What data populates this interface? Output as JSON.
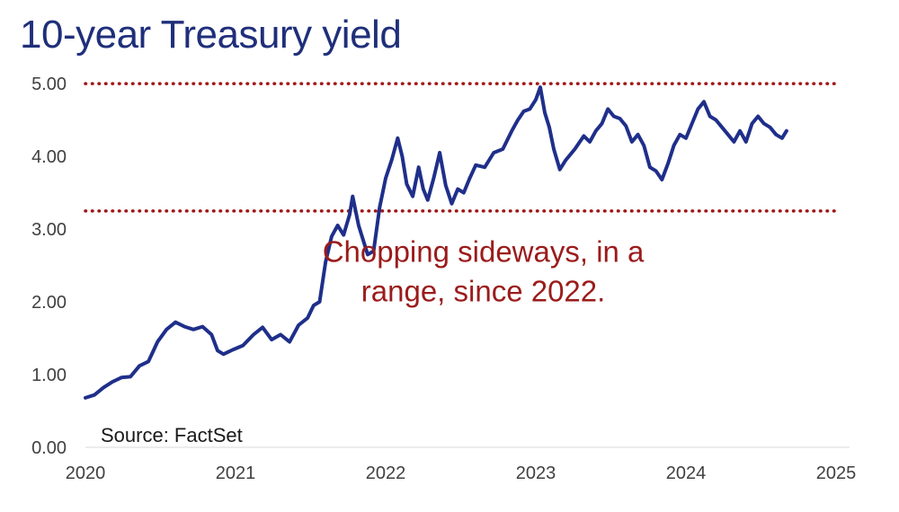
{
  "chart_data": {
    "type": "line",
    "title": "10-year Treasury yield",
    "xlabel": "",
    "ylabel": "",
    "x_ticks": [
      "2020",
      "2021",
      "2022",
      "2023",
      "2024",
      "2025"
    ],
    "y_ticks": [
      "0.00",
      "1.00",
      "2.00",
      "3.00",
      "4.00",
      "5.00"
    ],
    "xlim": [
      2020,
      2025
    ],
    "ylim": [
      0,
      5.1
    ],
    "grid": false,
    "series": [
      {
        "name": "",
        "color": "#1f2f8a",
        "points": [
          [
            2020.0,
            0.68
          ],
          [
            2020.06,
            0.72
          ],
          [
            2020.12,
            0.82
          ],
          [
            2020.18,
            0.9
          ],
          [
            2020.24,
            0.96
          ],
          [
            2020.3,
            0.97
          ],
          [
            2020.36,
            1.12
          ],
          [
            2020.42,
            1.18
          ],
          [
            2020.48,
            1.45
          ],
          [
            2020.54,
            1.62
          ],
          [
            2020.6,
            1.72
          ],
          [
            2020.66,
            1.66
          ],
          [
            2020.72,
            1.62
          ],
          [
            2020.78,
            1.66
          ],
          [
            2020.84,
            1.55
          ],
          [
            2020.88,
            1.33
          ],
          [
            2020.92,
            1.28
          ],
          [
            2020.98,
            1.34
          ],
          [
            2021.05,
            1.4
          ],
          [
            2021.12,
            1.55
          ],
          [
            2021.18,
            1.65
          ],
          [
            2021.24,
            1.48
          ],
          [
            2021.3,
            1.55
          ],
          [
            2021.36,
            1.45
          ],
          [
            2021.42,
            1.68
          ],
          [
            2021.48,
            1.78
          ],
          [
            2021.52,
            1.95
          ],
          [
            2021.56,
            2.0
          ],
          [
            2021.6,
            2.55
          ],
          [
            2021.64,
            2.9
          ],
          [
            2021.68,
            3.05
          ],
          [
            2021.72,
            2.92
          ],
          [
            2021.76,
            3.2
          ],
          [
            2021.78,
            3.45
          ],
          [
            2021.82,
            3.05
          ],
          [
            2021.88,
            2.65
          ],
          [
            2021.92,
            2.7
          ],
          [
            2021.96,
            3.3
          ],
          [
            2022.0,
            3.7
          ],
          [
            2022.04,
            3.95
          ],
          [
            2022.08,
            4.25
          ],
          [
            2022.11,
            4.0
          ],
          [
            2022.14,
            3.62
          ],
          [
            2022.18,
            3.45
          ],
          [
            2022.22,
            3.85
          ],
          [
            2022.25,
            3.55
          ],
          [
            2022.28,
            3.4
          ],
          [
            2022.32,
            3.7
          ],
          [
            2022.36,
            4.05
          ],
          [
            2022.4,
            3.6
          ],
          [
            2022.44,
            3.35
          ],
          [
            2022.48,
            3.55
          ],
          [
            2022.52,
            3.5
          ],
          [
            2022.56,
            3.7
          ],
          [
            2022.6,
            3.88
          ],
          [
            2022.66,
            3.85
          ],
          [
            2022.72,
            4.05
          ],
          [
            2022.78,
            4.1
          ],
          [
            2022.84,
            4.35
          ],
          [
            2022.88,
            4.5
          ],
          [
            2022.92,
            4.62
          ],
          [
            2022.96,
            4.65
          ],
          [
            2023.0,
            4.78
          ],
          [
            2023.03,
            4.95
          ],
          [
            2023.06,
            4.6
          ],
          [
            2023.09,
            4.4
          ],
          [
            2023.12,
            4.1
          ],
          [
            2023.16,
            3.82
          ],
          [
            2023.2,
            3.95
          ],
          [
            2023.26,
            4.1
          ],
          [
            2023.32,
            4.28
          ],
          [
            2023.36,
            4.2
          ],
          [
            2023.4,
            4.35
          ],
          [
            2023.44,
            4.45
          ],
          [
            2023.48,
            4.65
          ],
          [
            2023.52,
            4.55
          ],
          [
            2023.56,
            4.52
          ],
          [
            2023.6,
            4.42
          ],
          [
            2023.64,
            4.2
          ],
          [
            2023.68,
            4.3
          ],
          [
            2023.72,
            4.15
          ],
          [
            2023.76,
            3.85
          ],
          [
            2023.8,
            3.8
          ],
          [
            2023.84,
            3.68
          ],
          [
            2023.88,
            3.9
          ],
          [
            2023.92,
            4.15
          ],
          [
            2023.96,
            4.3
          ],
          [
            2024.0,
            4.25
          ],
          [
            2024.04,
            4.45
          ],
          [
            2024.08,
            4.65
          ],
          [
            2024.12,
            4.75
          ],
          [
            2024.16,
            4.55
          ],
          [
            2024.2,
            4.5
          ],
          [
            2024.24,
            4.4
          ],
          [
            2024.28,
            4.3
          ],
          [
            2024.32,
            4.2
          ],
          [
            2024.36,
            4.35
          ],
          [
            2024.4,
            4.2
          ],
          [
            2024.44,
            4.45
          ],
          [
            2024.48,
            4.55
          ],
          [
            2024.52,
            4.45
          ],
          [
            2024.56,
            4.4
          ],
          [
            2024.6,
            4.3
          ],
          [
            2024.64,
            4.25
          ],
          [
            2024.67,
            4.35
          ]
        ]
      }
    ],
    "reference_lines": [
      {
        "y": 5.0,
        "color": "#a01515",
        "style": "dotted"
      },
      {
        "y": 3.25,
        "color": "#a01515",
        "style": "dotted"
      }
    ],
    "annotations": [
      {
        "lines": [
          "Chopping sideways, in a",
          "range, since 2022."
        ],
        "x": 2022.65,
        "y": 2.55,
        "color": "#9b1b1b"
      }
    ],
    "source": "Source: FactSet"
  }
}
